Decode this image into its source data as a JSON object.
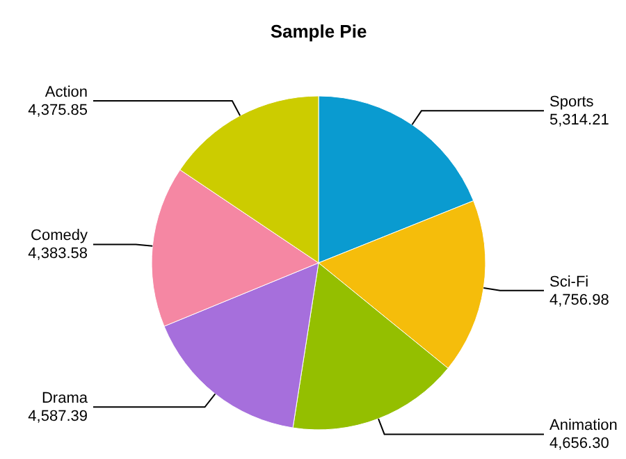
{
  "chart_data": {
    "type": "pie",
    "title": "Sample Pie",
    "categories": [
      "Sports",
      "Sci-Fi",
      "Animation",
      "Drama",
      "Comedy",
      "Action"
    ],
    "values": [
      5314.21,
      4756.98,
      4656.3,
      4587.39,
      4383.58,
      4375.85
    ],
    "colors": [
      "#0a9bd0",
      "#f5bd0b",
      "#94bf00",
      "#a66fdc",
      "#f587a3",
      "#cccc00"
    ],
    "value_labels": [
      "5,314.21",
      "4,756.98",
      "4,656.30",
      "4,587.39",
      "4,383.58",
      "4,375.85"
    ]
  }
}
